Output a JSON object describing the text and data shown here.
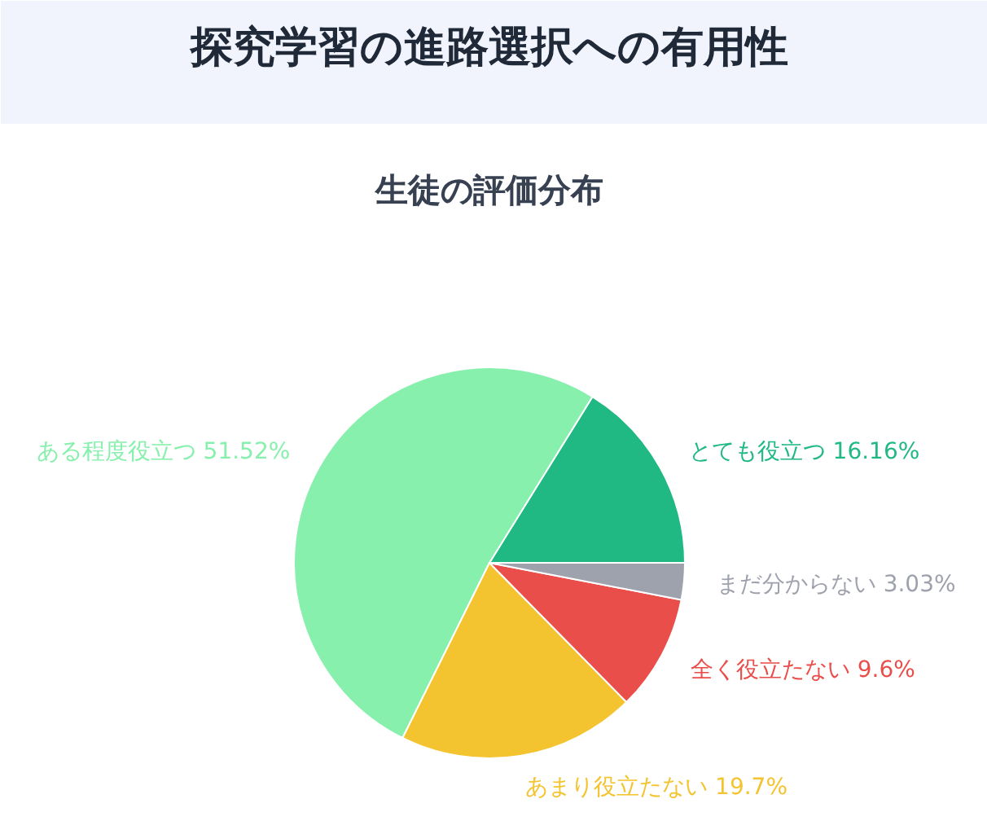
{
  "chart_data": {
    "type": "pie",
    "title": "探究学習の進路選択への有用性",
    "subtitle": "生徒の評価分布",
    "categories": [
      "とても役立つ",
      "ある程度役立つ",
      "あまり役立たない",
      "全く役立たない",
      "まだ分からない"
    ],
    "values": [
      16.16,
      51.52,
      19.7,
      9.6,
      3.03
    ],
    "value_labels": [
      "16.16%",
      "51.52%",
      "19.7%",
      "9.6%",
      "3.03%"
    ],
    "colors": [
      "#20b883",
      "#88f0ad",
      "#f4c430",
      "#ea4e4a",
      "#9ea2ad"
    ]
  }
}
